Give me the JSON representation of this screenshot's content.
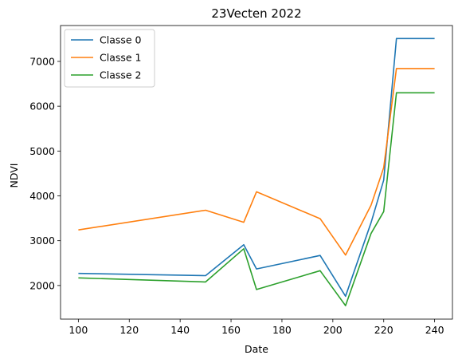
{
  "chart_data": {
    "type": "line",
    "title": "23Vecten 2022",
    "xlabel": "Date",
    "ylabel": "NDVI",
    "xlim": [
      93,
      247
    ],
    "ylim": [
      1250,
      7800
    ],
    "x_ticks": [
      100,
      120,
      140,
      160,
      180,
      200,
      220,
      240
    ],
    "y_ticks": [
      2000,
      3000,
      4000,
      5000,
      6000,
      7000
    ],
    "grid": false,
    "legend_position": "top-left",
    "series": [
      {
        "name": "Classe 0",
        "color": "#1f77b4",
        "x": [
          100,
          150,
          165,
          170,
          195,
          205,
          215,
          220,
          225,
          240
        ],
        "y": [
          2270,
          2220,
          2910,
          2370,
          2670,
          1760,
          3400,
          4350,
          7510,
          7510
        ]
      },
      {
        "name": "Classe 1",
        "color": "#ff7f0e",
        "x": [
          100,
          150,
          165,
          170,
          195,
          205,
          215,
          220,
          225,
          240
        ],
        "y": [
          3240,
          3680,
          3410,
          4090,
          3490,
          2680,
          3790,
          4630,
          6840,
          6840
        ]
      },
      {
        "name": "Classe 2",
        "color": "#2ca02c",
        "x": [
          100,
          150,
          165,
          170,
          195,
          205,
          215,
          220,
          225,
          240
        ],
        "y": [
          2170,
          2080,
          2820,
          1910,
          2330,
          1550,
          3160,
          3650,
          6300,
          6300
        ]
      }
    ]
  }
}
